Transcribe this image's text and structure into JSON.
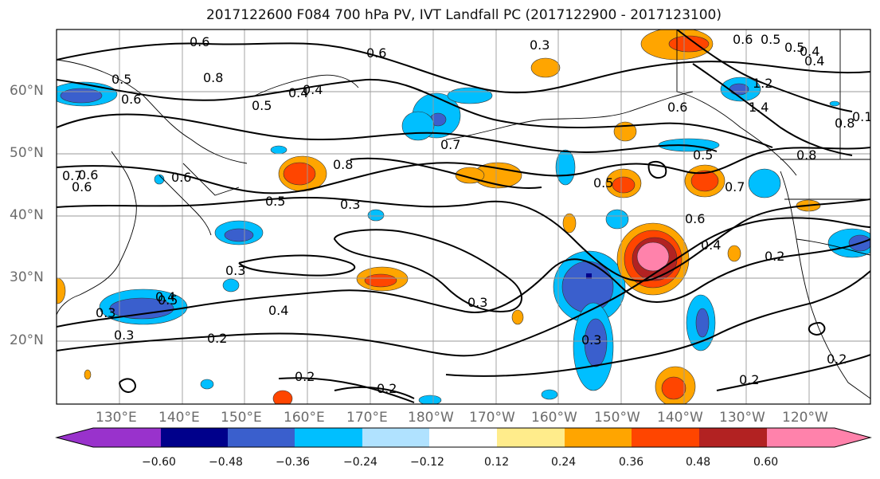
{
  "title": "2017122600 F084 700 hPa PV, IVT Landfall PC (2017122900 - 2017123100)",
  "map": {
    "lat_labels": [
      "60°N",
      "50°N",
      "40°N",
      "30°N",
      "20°N"
    ],
    "lon_labels": [
      "130°E",
      "140°E",
      "150°E",
      "160°E",
      "170°E",
      "180°W",
      "170°W",
      "160°W",
      "150°W",
      "140°W",
      "130°W",
      "120°W"
    ],
    "contour_labels": [
      "0.6",
      "0.6",
      "0.5",
      "0.8",
      "0.4",
      "0.5",
      "0.6",
      "0.6",
      "0.3",
      "0.7",
      "0.8",
      "0.5",
      "0.3",
      "0.6",
      "0.4",
      "0.3",
      "0.4",
      "0.2",
      "0.2",
      "0.2",
      "0.2",
      "0.2",
      "0.3",
      "0.4",
      "0.3",
      "0.5",
      "0.6",
      "0.6",
      "0.7",
      "0.8",
      "0.5",
      "0.5",
      "0.2",
      "0.3",
      "0.4",
      "0.5",
      "1.2",
      "1.4",
      "0.8",
      "0.6",
      "0.5",
      "0.4",
      "0.7",
      "0.6",
      "0.4",
      "0.1",
      "0.3"
    ]
  },
  "colorbar": {
    "tick_labels": [
      "−0.60",
      "−0.48",
      "−0.36",
      "−0.24",
      "−0.12",
      "0.12",
      "0.24",
      "0.36",
      "0.48",
      "0.60"
    ],
    "colors": [
      "#9932cc",
      "#00008b",
      "#3a5fcd",
      "#00bfff",
      "#b0e2ff",
      "#ffffff",
      "#ffec8b",
      "#ffa500",
      "#ff4500",
      "#b22222",
      "#ff82ab"
    ]
  }
}
